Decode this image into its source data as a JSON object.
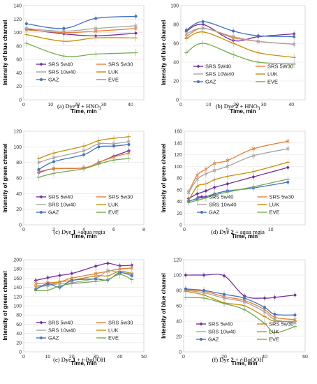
{
  "series_meta": [
    {
      "key": "SRS 5w40",
      "color": "#7030a0",
      "marker": "diamond"
    },
    {
      "key": "SRS 5w30",
      "color": "#ed7d31",
      "marker": "x"
    },
    {
      "key": "SRS 10w40",
      "color": "#a5a5a5",
      "marker": "x"
    },
    {
      "key": "LUK",
      "color": "#c89000",
      "marker": "line"
    },
    {
      "key": "GAZ",
      "color": "#4472c4",
      "marker": "circle"
    },
    {
      "key": "EVE",
      "color": "#70ad47",
      "marker": "line"
    }
  ],
  "captions": [
    {
      "pre": "(a) Dye ",
      "bold": "1",
      "mid": " + HNO",
      "sub": "3",
      "post": ""
    },
    {
      "pre": "(b) Dye ",
      "bold": "2",
      "mid": " + HNO",
      "sub": "3",
      "post": ""
    },
    {
      "pre": "(c) Dye ",
      "bold": "1",
      "mid": " +aqua regia",
      "sub": "",
      "post": ""
    },
    {
      "pre": "(d) Dye ",
      "bold": "2",
      "mid": " + aqua regia",
      "sub": "",
      "post": ""
    },
    {
      "pre": "(e) Dye ",
      "bold": "1",
      "mid": " + ",
      "ital": "t",
      "post": "-BuOOH"
    },
    {
      "pre": "(f) Dye ",
      "bold": "2",
      "mid": " + ",
      "ital": "t",
      "post": "-BuOOH"
    }
  ],
  "chart_data": [
    {
      "type": "line",
      "xlabel": "Time, min",
      "ylabel": "Intensity of blue channel",
      "xlim": [
        0,
        45
      ],
      "ylim": [
        0,
        140
      ],
      "xticks": [
        0,
        10,
        20,
        30,
        40
      ],
      "yticks": [
        0,
        20,
        40,
        60,
        80,
        100,
        120,
        140
      ],
      "legend": [
        "SRS 5w40",
        "SRS 5w30",
        "SRS 10w40",
        "LUK",
        "GAZ",
        "EVE"
      ],
      "series": [
        {
          "name": "SRS 5w40",
          "x": [
            1,
            15,
            27,
            42
          ],
          "y": [
            105,
            98,
            95,
            99
          ]
        },
        {
          "name": "SRS 5w30",
          "x": [
            1,
            15,
            27,
            42
          ],
          "y": [
            104,
            100,
            102,
            106
          ]
        },
        {
          "name": "SRS 10w40",
          "x": [
            1,
            15,
            27,
            42
          ],
          "y": [
            106,
            102,
            106,
            110
          ]
        },
        {
          "name": "LUK",
          "x": [
            1,
            15,
            27,
            42
          ],
          "y": [
            97,
            87,
            92,
            92
          ]
        },
        {
          "name": "GAZ",
          "x": [
            1,
            15,
            27,
            42
          ],
          "y": [
            113,
            106,
            121,
            124
          ]
        },
        {
          "name": "EVE",
          "x": [
            1,
            15,
            27,
            42
          ],
          "y": [
            84,
            65,
            68,
            70
          ]
        }
      ]
    },
    {
      "type": "line",
      "xlabel": "Time, min",
      "ylabel": "Intensity of blue channel",
      "xlim": [
        0,
        45
      ],
      "ylim": [
        0,
        100
      ],
      "xticks": [
        0,
        10,
        20,
        30,
        40
      ],
      "yticks": [
        0,
        20,
        40,
        60,
        80,
        100
      ],
      "legend": [
        "SRS 5W40",
        "SRS 5W30",
        "SRS 10W40",
        "LUK",
        "GAZ",
        "EVE"
      ],
      "series": [
        {
          "name": "SRS 5W40",
          "x": [
            2,
            8,
            19,
            28,
            41
          ],
          "y": [
            73,
            80,
            63,
            67,
            70
          ]
        },
        {
          "name": "SRS 5W30",
          "x": [
            2,
            8,
            19,
            28,
            41
          ],
          "y": [
            67,
            76,
            66,
            62,
            59
          ]
        },
        {
          "name": "SRS 10W40",
          "x": [
            2,
            8,
            19,
            28,
            41
          ],
          "y": [
            70,
            76,
            67,
            62,
            59
          ]
        },
        {
          "name": "LUK",
          "x": [
            2,
            8,
            19,
            28,
            41
          ],
          "y": [
            65,
            72,
            60,
            50,
            45
          ]
        },
        {
          "name": "GAZ",
          "x": [
            2,
            8,
            19,
            28,
            41
          ],
          "y": [
            74,
            83,
            73,
            68,
            67
          ]
        },
        {
          "name": "EVE",
          "x": [
            2,
            8,
            19,
            28,
            41
          ],
          "y": [
            50,
            60,
            48,
            40,
            38
          ]
        }
      ]
    },
    {
      "type": "line",
      "xlabel": "Time, min",
      "ylabel": "Intensity of green channel",
      "xlim": [
        0,
        8
      ],
      "ylim": [
        0,
        120
      ],
      "xticks": [
        0,
        2,
        4,
        6,
        8
      ],
      "yticks": [
        0,
        20,
        40,
        60,
        80,
        100,
        120
      ],
      "legend": [
        "SRS 5w40",
        "SRS 5w30",
        "SRS 10w40",
        "LUK",
        "GAZ",
        "EVE"
      ],
      "series": [
        {
          "name": "SRS 5w40",
          "x": [
            1,
            2,
            4,
            5,
            6,
            7
          ],
          "y": [
            67,
            72,
            73,
            80,
            88,
            95
          ]
        },
        {
          "name": "SRS 5w30",
          "x": [
            1,
            2,
            4,
            5,
            6,
            7
          ],
          "y": [
            68,
            72,
            73,
            80,
            87,
            92
          ]
        },
        {
          "name": "SRS 10w40",
          "x": [
            1,
            2,
            4,
            5,
            6,
            7
          ],
          "y": [
            80,
            86,
            95,
            104,
            104,
            107
          ]
        },
        {
          "name": "LUK",
          "x": [
            1,
            2,
            4,
            5,
            6,
            7
          ],
          "y": [
            85,
            92,
            101,
            108,
            111,
            113
          ]
        },
        {
          "name": "GAZ",
          "x": [
            1,
            2,
            4,
            5,
            6,
            7
          ],
          "y": [
            71,
            81,
            90,
            100,
            101,
            103
          ]
        },
        {
          "name": "EVE",
          "x": [
            1,
            2,
            4,
            5,
            6,
            7
          ],
          "y": [
            61,
            66,
            72,
            78,
            83,
            85
          ]
        }
      ]
    },
    {
      "type": "line",
      "xlabel": "Time, min",
      "ylabel": "Intensity of green channel",
      "xlim": [
        0,
        14
      ],
      "ylim": [
        0,
        160
      ],
      "xticks": [
        0,
        5,
        10
      ],
      "yticks": [
        0,
        20,
        40,
        60,
        80,
        100,
        120,
        140,
        160
      ],
      "legend": [
        "SRS 5w40",
        "SRS 5w30",
        "SRS 10w40",
        "LUK",
        "GAZ",
        "EVE"
      ],
      "series": [
        {
          "name": "SRS 5w40",
          "x": [
            0.5,
            1.5,
            2.5,
            3.5,
            5,
            8,
            12
          ],
          "y": [
            45,
            53,
            58,
            64,
            70,
            82,
            98
          ]
        },
        {
          "name": "SRS 5w30",
          "x": [
            0.5,
            1.5,
            2.5,
            3.5,
            5,
            8,
            12
          ],
          "y": [
            56,
            85,
            95,
            105,
            110,
            130,
            143
          ]
        },
        {
          "name": "SRS 10w40",
          "x": [
            0.5,
            1.5,
            2.5,
            3.5,
            5,
            8,
            12
          ],
          "y": [
            55,
            78,
            87,
            93,
            100,
            118,
            130
          ]
        },
        {
          "name": "LUK",
          "x": [
            0.5,
            1.5,
            2.5,
            3.5,
            5,
            8,
            12
          ],
          "y": [
            42,
            66,
            70,
            77,
            83,
            91,
            107
          ]
        },
        {
          "name": "GAZ",
          "x": [
            0.5,
            1.5,
            2.5,
            3.5,
            5,
            8,
            12
          ],
          "y": [
            40,
            45,
            48,
            53,
            58,
            63,
            73
          ]
        },
        {
          "name": "EVE",
          "x": [
            0.5,
            1.5,
            2.5,
            3.5,
            5,
            8,
            12
          ],
          "y": [
            38,
            42,
            46,
            51,
            56,
            65,
            78
          ]
        }
      ]
    },
    {
      "type": "line",
      "xlabel": "Time, min",
      "ylabel": "Intensity of green channel",
      "xlim": [
        0,
        50
      ],
      "ylim": [
        0,
        200
      ],
      "xticks": [
        0,
        10,
        20,
        30,
        40,
        50
      ],
      "yticks": [
        0,
        20,
        40,
        60,
        80,
        100,
        120,
        140,
        160,
        180,
        200
      ],
      "legend": [
        "SRS 5w40",
        "SRS 5w30",
        "SRS 10w40",
        "LUK",
        "GAZ",
        "EVE"
      ],
      "series": [
        {
          "name": "SRS 5w40",
          "x": [
            5,
            10,
            15,
            20,
            30,
            35,
            40,
            45
          ],
          "y": [
            155,
            161,
            166,
            170,
            186,
            192,
            187,
            188
          ]
        },
        {
          "name": "SRS 5w30",
          "x": [
            5,
            10,
            15,
            20,
            30,
            35,
            40,
            45
          ],
          "y": [
            148,
            150,
            152,
            160,
            170,
            175,
            180,
            182
          ]
        },
        {
          "name": "SRS 10w40",
          "x": [
            5,
            10,
            15,
            20,
            30,
            35,
            40,
            45
          ],
          "y": [
            140,
            144,
            148,
            150,
            160,
            176,
            172,
            170
          ]
        },
        {
          "name": "LUK",
          "x": [
            5,
            10,
            15,
            20,
            30,
            35,
            40,
            45
          ],
          "y": [
            143,
            145,
            152,
            155,
            165,
            165,
            175,
            170
          ]
        },
        {
          "name": "GAZ",
          "x": [
            5,
            10,
            15,
            20,
            30,
            35,
            40,
            45
          ],
          "y": [
            135,
            148,
            140,
            155,
            158,
            156,
            172,
            165
          ]
        },
        {
          "name": "EVE",
          "x": [
            5,
            10,
            15,
            20,
            30,
            35,
            40,
            45
          ],
          "y": [
            133,
            134,
            143,
            148,
            153,
            157,
            168,
            157
          ]
        }
      ]
    },
    {
      "type": "line",
      "xlabel": "Time, min",
      "ylabel": "Intensity of blue channel",
      "xlim": [
        0,
        60
      ],
      "ylim": [
        0,
        120
      ],
      "xticks": [
        0,
        20,
        40,
        60
      ],
      "yticks": [
        0,
        20,
        40,
        60,
        80,
        100,
        120
      ],
      "legend": [
        "SRS 5w40",
        "SRS 5w30",
        "SRS 10w40",
        "LUK",
        "GAZ",
        "EVE"
      ],
      "series": [
        {
          "name": "SRS 5w40",
          "x": [
            1,
            10,
            20,
            30,
            40,
            45,
            55
          ],
          "y": [
            100,
            100,
            99,
            73,
            70,
            71,
            74
          ]
        },
        {
          "name": "SRS 5w30",
          "x": [
            1,
            10,
            20,
            30,
            40,
            45,
            55
          ],
          "y": [
            81,
            79,
            72,
            67,
            55,
            45,
            42
          ]
        },
        {
          "name": "SRS 10w40",
          "x": [
            1,
            10,
            20,
            30,
            40,
            45,
            55
          ],
          "y": [
            80,
            77,
            70,
            65,
            52,
            42,
            38
          ]
        },
        {
          "name": "LUK",
          "x": [
            1,
            10,
            20,
            30,
            40,
            45,
            55
          ],
          "y": [
            79,
            74,
            64,
            60,
            46,
            40,
            40
          ]
        },
        {
          "name": "GAZ",
          "x": [
            1,
            10,
            20,
            30,
            40,
            45,
            55
          ],
          "y": [
            82,
            80,
            75,
            70,
            58,
            49,
            48
          ]
        },
        {
          "name": "EVE",
          "x": [
            1,
            10,
            20,
            30,
            40,
            45,
            55
          ],
          "y": [
            71,
            70,
            63,
            55,
            37,
            25,
            33
          ]
        }
      ]
    }
  ]
}
